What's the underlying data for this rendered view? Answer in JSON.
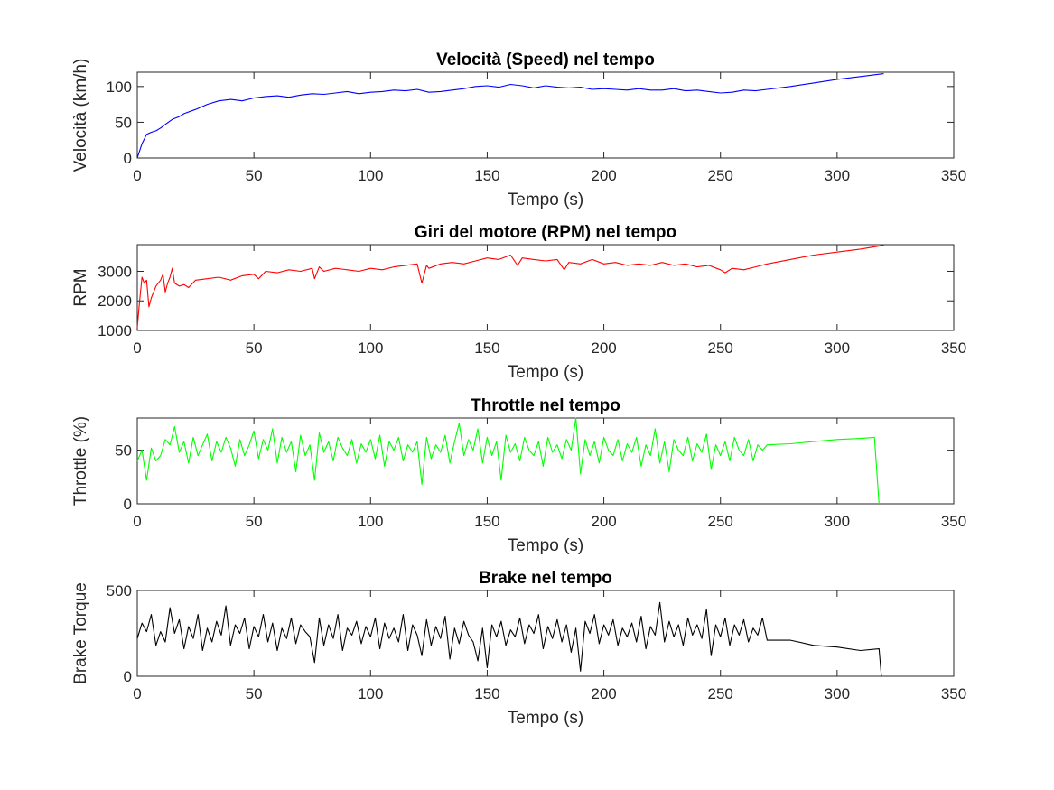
{
  "chart_data": [
    {
      "type": "line",
      "title": "Velocità (Speed) nel tempo",
      "xlabel": "Tempo (s)",
      "ylabel": "Velocità (km/h)",
      "xlim": [
        0,
        350
      ],
      "ylim": [
        0,
        120
      ],
      "xticks": [
        0,
        50,
        100,
        150,
        200,
        250,
        300,
        350
      ],
      "yticks": [
        0,
        50,
        100
      ],
      "grid": false,
      "color": "#0000ff",
      "series": [
        {
          "x": [
            0,
            2,
            4,
            6,
            8,
            10,
            12,
            15,
            18,
            20,
            25,
            30,
            35,
            40,
            45,
            50,
            55,
            60,
            65,
            70,
            75,
            80,
            85,
            90,
            95,
            100,
            105,
            110,
            115,
            120,
            125,
            130,
            135,
            140,
            145,
            150,
            155,
            160,
            165,
            170,
            175,
            180,
            185,
            190,
            195,
            200,
            205,
            210,
            215,
            220,
            225,
            230,
            235,
            240,
            245,
            250,
            255,
            260,
            265,
            270,
            280,
            290,
            300,
            310,
            320
          ],
          "y": [
            0,
            20,
            33,
            36,
            38,
            42,
            47,
            54,
            58,
            62,
            68,
            75,
            80,
            82,
            80,
            84,
            86,
            87,
            85,
            88,
            90,
            89,
            91,
            93,
            90,
            92,
            93,
            95,
            94,
            96,
            92,
            93,
            95,
            97,
            100,
            101,
            99,
            103,
            101,
            98,
            101,
            99,
            98,
            99,
            96,
            97,
            96,
            95,
            97,
            95,
            95,
            97,
            94,
            95,
            93,
            91,
            92,
            95,
            94,
            96,
            100,
            105,
            110,
            114,
            118
          ]
        }
      ]
    },
    {
      "type": "line",
      "title": "Giri del motore (RPM) nel tempo",
      "xlabel": "Tempo (s)",
      "ylabel": "RPM",
      "xlim": [
        0,
        350
      ],
      "ylim": [
        1000,
        3900
      ],
      "xticks": [
        0,
        50,
        100,
        150,
        200,
        250,
        300,
        350
      ],
      "yticks": [
        1000,
        2000,
        3000
      ],
      "grid": false,
      "color": "#ff0000",
      "series": [
        {
          "x": [
            0,
            1,
            2,
            3,
            4,
            5,
            6,
            8,
            10,
            11,
            12,
            13,
            14,
            15,
            16,
            18,
            20,
            22,
            25,
            30,
            35,
            40,
            45,
            50,
            52,
            55,
            60,
            65,
            70,
            75,
            76,
            78,
            80,
            85,
            90,
            95,
            100,
            105,
            110,
            115,
            120,
            122,
            124,
            125,
            130,
            135,
            140,
            145,
            150,
            155,
            160,
            163,
            165,
            170,
            175,
            180,
            183,
            185,
            190,
            195,
            200,
            205,
            210,
            215,
            220,
            225,
            230,
            235,
            240,
            245,
            250,
            252,
            255,
            260,
            265,
            270,
            280,
            290,
            300,
            310,
            320
          ],
          "y": [
            1100,
            2000,
            2800,
            2600,
            2700,
            1800,
            2100,
            2500,
            2700,
            2900,
            2300,
            2600,
            2800,
            3100,
            2600,
            2500,
            2550,
            2450,
            2700,
            2750,
            2800,
            2700,
            2850,
            2900,
            2750,
            3000,
            2950,
            3050,
            3000,
            3100,
            2750,
            3150,
            3000,
            3100,
            3050,
            3000,
            3100,
            3050,
            3150,
            3200,
            3250,
            2600,
            3200,
            3100,
            3250,
            3300,
            3250,
            3350,
            3450,
            3400,
            3550,
            3200,
            3450,
            3400,
            3350,
            3400,
            3050,
            3300,
            3250,
            3400,
            3250,
            3300,
            3200,
            3250,
            3200,
            3300,
            3200,
            3250,
            3150,
            3200,
            3050,
            2950,
            3100,
            3050,
            3150,
            3250,
            3400,
            3550,
            3650,
            3750,
            3880
          ]
        }
      ]
    },
    {
      "type": "line",
      "title": "Throttle nel tempo",
      "xlabel": "Tempo (s)",
      "ylabel": "Throttle (%)",
      "xlim": [
        0,
        350
      ],
      "ylim": [
        0,
        80
      ],
      "xticks": [
        0,
        50,
        100,
        150,
        200,
        250,
        300,
        350
      ],
      "yticks": [
        0,
        50
      ],
      "grid": false,
      "color": "#00ff00",
      "series": [
        {
          "x": [
            0,
            2,
            4,
            6,
            8,
            10,
            12,
            14,
            16,
            18,
            20,
            22,
            24,
            26,
            28,
            30,
            32,
            34,
            36,
            38,
            40,
            42,
            44,
            46,
            48,
            50,
            52,
            54,
            56,
            58,
            60,
            62,
            64,
            66,
            68,
            70,
            72,
            74,
            76,
            78,
            80,
            82,
            84,
            86,
            88,
            90,
            92,
            94,
            96,
            98,
            100,
            102,
            104,
            106,
            108,
            110,
            112,
            114,
            116,
            118,
            120,
            122,
            124,
            126,
            128,
            130,
            132,
            134,
            136,
            138,
            140,
            142,
            144,
            146,
            148,
            150,
            152,
            154,
            156,
            158,
            160,
            162,
            164,
            166,
            168,
            170,
            172,
            174,
            176,
            178,
            180,
            182,
            184,
            186,
            188,
            190,
            192,
            194,
            196,
            198,
            200,
            202,
            204,
            206,
            208,
            210,
            212,
            214,
            216,
            218,
            220,
            222,
            224,
            226,
            228,
            230,
            232,
            234,
            236,
            238,
            240,
            242,
            244,
            246,
            248,
            250,
            252,
            254,
            256,
            258,
            260,
            262,
            264,
            266,
            268,
            270,
            280,
            290,
            300,
            310,
            316,
            318
          ],
          "y": [
            40,
            50,
            22,
            52,
            40,
            45,
            60,
            55,
            72,
            48,
            58,
            38,
            62,
            45,
            55,
            65,
            40,
            58,
            48,
            62,
            52,
            35,
            60,
            45,
            55,
            68,
            42,
            60,
            50,
            70,
            38,
            62,
            48,
            58,
            30,
            64,
            45,
            55,
            22,
            66,
            48,
            58,
            40,
            62,
            52,
            45,
            60,
            38,
            56,
            48,
            60,
            42,
            64,
            35,
            58,
            50,
            62,
            40,
            55,
            48,
            58,
            18,
            62,
            42,
            55,
            48,
            64,
            38,
            58,
            75,
            45,
            60,
            50,
            70,
            38,
            62,
            45,
            58,
            22,
            64,
            48,
            56,
            40,
            62,
            50,
            45,
            58,
            35,
            62,
            48,
            55,
            42,
            60,
            50,
            80,
            28,
            60,
            45,
            58,
            38,
            62,
            50,
            45,
            60,
            40,
            56,
            48,
            62,
            35,
            55,
            45,
            70,
            38,
            58,
            30,
            60,
            50,
            45,
            62,
            40,
            56,
            48,
            65,
            32,
            55,
            45,
            58,
            40,
            62,
            50,
            45,
            60,
            40,
            55,
            50,
            55,
            56,
            58,
            60,
            61,
            62,
            0
          ]
        }
      ]
    },
    {
      "type": "line",
      "title": "Brake nel tempo",
      "xlabel": "Tempo (s)",
      "ylabel": "Brake Torque",
      "xlim": [
        0,
        350
      ],
      "ylim": [
        0,
        500
      ],
      "xticks": [
        0,
        50,
        100,
        150,
        200,
        250,
        300,
        350
      ],
      "yticks": [
        0,
        500
      ],
      "grid": false,
      "color": "#000000",
      "series": [
        {
          "x": [
            0,
            2,
            4,
            6,
            8,
            10,
            12,
            14,
            16,
            18,
            20,
            22,
            24,
            26,
            28,
            30,
            32,
            34,
            36,
            38,
            40,
            42,
            44,
            46,
            48,
            50,
            52,
            54,
            56,
            58,
            60,
            62,
            64,
            66,
            68,
            70,
            72,
            74,
            76,
            78,
            80,
            82,
            84,
            86,
            88,
            90,
            92,
            94,
            96,
            98,
            100,
            102,
            104,
            106,
            108,
            110,
            112,
            114,
            116,
            118,
            120,
            122,
            124,
            126,
            128,
            130,
            132,
            134,
            136,
            138,
            140,
            142,
            144,
            146,
            148,
            150,
            152,
            154,
            156,
            158,
            160,
            162,
            164,
            166,
            168,
            170,
            172,
            174,
            176,
            178,
            180,
            182,
            184,
            186,
            188,
            190,
            192,
            194,
            196,
            198,
            200,
            202,
            204,
            206,
            208,
            210,
            212,
            214,
            216,
            218,
            220,
            222,
            224,
            226,
            228,
            230,
            232,
            234,
            236,
            238,
            240,
            242,
            244,
            246,
            248,
            250,
            252,
            254,
            256,
            258,
            260,
            262,
            264,
            266,
            268,
            270,
            280,
            290,
            300,
            310,
            318,
            319
          ],
          "y": [
            220,
            310,
            260,
            360,
            180,
            260,
            200,
            400,
            250,
            330,
            160,
            290,
            220,
            360,
            150,
            280,
            200,
            320,
            240,
            410,
            180,
            300,
            250,
            340,
            160,
            290,
            230,
            360,
            200,
            310,
            150,
            280,
            220,
            340,
            190,
            300,
            260,
            230,
            80,
            340,
            180,
            300,
            220,
            360,
            150,
            280,
            240,
            320,
            190,
            290,
            230,
            340,
            160,
            310,
            220,
            280,
            200,
            360,
            150,
            300,
            240,
            120,
            330,
            180,
            290,
            220,
            350,
            100,
            280,
            190,
            320,
            240,
            200,
            90,
            280,
            50,
            300,
            230,
            320,
            180,
            270,
            230,
            340,
            190,
            300,
            250,
            360,
            160,
            290,
            220,
            330,
            200,
            300,
            140,
            280,
            30,
            320,
            250,
            360,
            190,
            300,
            240,
            330,
            180,
            280,
            230,
            310,
            200,
            350,
            160,
            290,
            240,
            430,
            200,
            320,
            230,
            300,
            180,
            340,
            240,
            300,
            220,
            390,
            120,
            300,
            230,
            340,
            180,
            300,
            240,
            330,
            200,
            280,
            240,
            340,
            210,
            210,
            180,
            170,
            150,
            160,
            0
          ]
        }
      ]
    }
  ]
}
